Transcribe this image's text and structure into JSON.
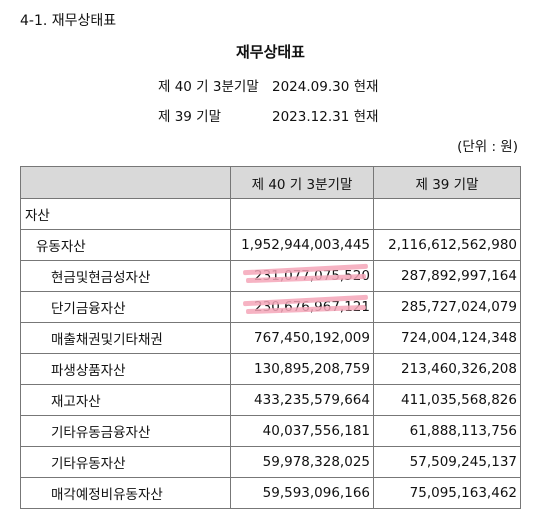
{
  "section_heading": "4-1. 재무상태표",
  "doc_title": "재무상태표",
  "periods": [
    {
      "term": "제 40 기 3분기말",
      "date": "2024.09.30 현재"
    },
    {
      "term": "제 39 기말",
      "date": "2023.12.31 현재"
    }
  ],
  "unit": "(단위 : 원)",
  "table": {
    "headers": [
      "",
      "제 40 기 3분기말",
      "제 39 기말"
    ],
    "rows": [
      {
        "label": "자산",
        "level": 0,
        "current": "",
        "prior": ""
      },
      {
        "label": "유동자산",
        "level": 1,
        "current": "1,952,944,003,445",
        "prior": "2,116,612,562,980"
      },
      {
        "label": "현금및현금성자산",
        "level": 2,
        "current": "231,077,075,520",
        "prior": "287,892,997,164"
      },
      {
        "label": "단기금융자산",
        "level": 2,
        "current": "230,676,967,121",
        "prior": "285,727,024,079"
      },
      {
        "label": "매출채권및기타채권",
        "level": 2,
        "current": "767,450,192,009",
        "prior": "724,004,124,348"
      },
      {
        "label": "파생상품자산",
        "level": 2,
        "current": "130,895,208,759",
        "prior": "213,460,326,208"
      },
      {
        "label": "재고자산",
        "level": 2,
        "current": "433,235,579,664",
        "prior": "411,035,568,826"
      },
      {
        "label": "기타유동금융자산",
        "level": 2,
        "current": "40,037,556,181",
        "prior": "61,888,113,756"
      },
      {
        "label": "기타유동자산",
        "level": 2,
        "current": "59,978,328,025",
        "prior": "57,509,245,137"
      },
      {
        "label": "매각예정비유동자산",
        "level": 2,
        "current": "59,593,096,166",
        "prior": "75,095,163,462"
      }
    ]
  },
  "highlight_color": "#f4a6b8"
}
